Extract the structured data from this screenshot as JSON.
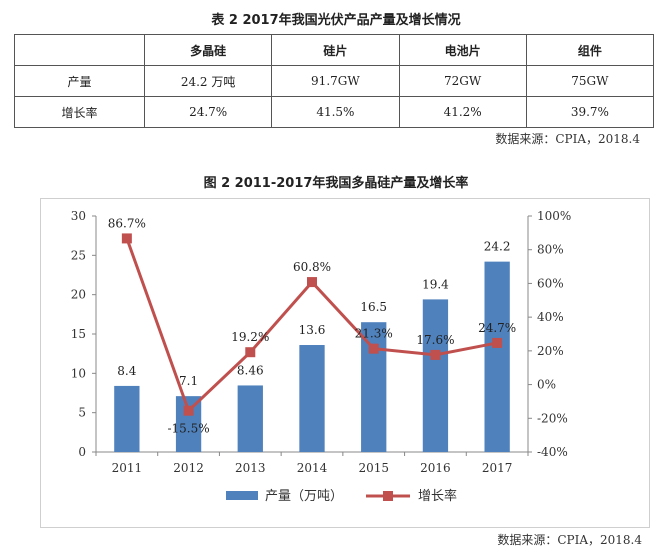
{
  "table": {
    "title": "表 2 2017年我国光伏产品产量及增长情况",
    "headers": [
      "",
      "多晶硅",
      "硅片",
      "电池片",
      "组件"
    ],
    "rows": [
      [
        "产量",
        "24.2 万吨",
        "91.7GW",
        "72GW",
        "75GW"
      ],
      [
        "增长率",
        "24.7%",
        "41.5%",
        "41.2%",
        "39.7%"
      ]
    ],
    "source": "数据来源：CPIA，2018.4"
  },
  "chart_data": {
    "type": "bar",
    "title": "图 2 2011-2017年我国多晶硅产量及增长率",
    "categories": [
      "2011",
      "2012",
      "2013",
      "2014",
      "2015",
      "2016",
      "2017"
    ],
    "series": [
      {
        "name": "产量（万吨）",
        "type": "bar",
        "axis": "left",
        "values": [
          8.4,
          7.1,
          8.46,
          13.6,
          16.5,
          19.4,
          24.2
        ],
        "labels": [
          "8.4",
          "7.1",
          "8.46",
          "13.6",
          "16.5",
          "19.4",
          "24.2"
        ],
        "color": "#4f81bd"
      },
      {
        "name": "增长率",
        "type": "line",
        "axis": "right",
        "values": [
          86.7,
          -15.5,
          19.2,
          60.8,
          21.3,
          17.6,
          24.7
        ],
        "labels": [
          "86.7%",
          "-15.5%",
          "19.2%",
          "60.8%",
          "21.3%",
          "17.6%",
          "24.7%"
        ],
        "color": "#c0504d"
      }
    ],
    "y_left": {
      "range": [
        0,
        30
      ],
      "ticks": [
        "0",
        "5",
        "10",
        "15",
        "20",
        "25",
        "30"
      ]
    },
    "y_right": {
      "range": [
        -40,
        100
      ],
      "ticks": [
        "-40%",
        "-20%",
        "0%",
        "20%",
        "40%",
        "60%",
        "80%",
        "100%"
      ]
    },
    "grid": false,
    "legend_position": "bottom",
    "source": "数据来源：CPIA，2018.4"
  }
}
